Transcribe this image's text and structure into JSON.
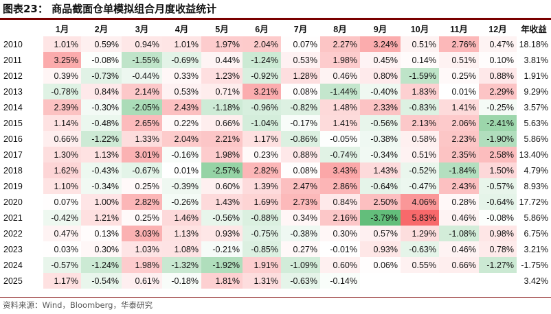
{
  "title": "图表23：  商品截面仓单模拟组合月度收益统计",
  "columns": [
    "1月",
    "2月",
    "3月",
    "4月",
    "5月",
    "6月",
    "7月",
    "8月",
    "9月",
    "10月",
    "11月",
    "12月",
    "年收益"
  ],
  "rows": [
    {
      "year": "2010",
      "vals": [
        "1.01%",
        "0.59%",
        "0.94%",
        "1.01%",
        "1.97%",
        "2.04%",
        "0.07%",
        "2.27%",
        "3.24%",
        "0.51%",
        "2.76%",
        "0.47%"
      ],
      "annual": "18.18%"
    },
    {
      "year": "2011",
      "vals": [
        "3.25%",
        "-0.08%",
        "-1.55%",
        "-0.69%",
        "0.44%",
        "-1.24%",
        "0.53%",
        "1.98%",
        "0.45%",
        "0.14%",
        "0.51%",
        "0.10%"
      ],
      "annual": "3.81%"
    },
    {
      "year": "2012",
      "vals": [
        "0.39%",
        "-0.73%",
        "-0.44%",
        "0.33%",
        "1.23%",
        "-0.92%",
        "1.28%",
        "0.46%",
        "0.80%",
        "-1.59%",
        "0.25%",
        "0.88%"
      ],
      "annual": "1.91%"
    },
    {
      "year": "2013",
      "vals": [
        "-0.78%",
        "0.84%",
        "2.14%",
        "0.53%",
        "0.71%",
        "3.21%",
        "0.08%",
        "-1.44%",
        "-0.40%",
        "1.83%",
        "0.01%",
        "2.29%"
      ],
      "annual": "9.29%"
    },
    {
      "year": "2014",
      "vals": [
        "2.39%",
        "-0.30%",
        "-2.05%",
        "2.43%",
        "-1.18%",
        "-0.96%",
        "-0.82%",
        "1.48%",
        "2.33%",
        "-0.83%",
        "1.41%",
        "-0.25%"
      ],
      "annual": "3.57%"
    },
    {
      "year": "2015",
      "vals": [
        "1.14%",
        "-0.48%",
        "2.65%",
        "0.22%",
        "0.66%",
        "-1.04%",
        "-0.17%",
        "1.41%",
        "-0.56%",
        "2.13%",
        "2.06%",
        "-2.41%"
      ],
      "annual": "5.63%"
    },
    {
      "year": "2016",
      "vals": [
        "0.66%",
        "-1.22%",
        "1.33%",
        "2.04%",
        "2.21%",
        "1.17%",
        "-0.86%",
        "-0.05%",
        "-0.38%",
        "0.58%",
        "2.23%",
        "-1.90%"
      ],
      "annual": "5.86%"
    },
    {
      "year": "2017",
      "vals": [
        "1.30%",
        "1.13%",
        "3.01%",
        "-0.16%",
        "1.98%",
        "0.23%",
        "0.88%",
        "-0.74%",
        "-0.34%",
        "0.51%",
        "2.35%",
        "2.58%"
      ],
      "annual": "13.40%"
    },
    {
      "year": "2018",
      "vals": [
        "1.62%",
        "-0.43%",
        "-0.67%",
        "0.01%",
        "-2.57%",
        "2.82%",
        "0.08%",
        "3.43%",
        "1.43%",
        "-0.52%",
        "-1.84%",
        "1.50%"
      ],
      "annual": "4.79%"
    },
    {
      "year": "2019",
      "vals": [
        "1.10%",
        "-0.34%",
        "0.25%",
        "-0.39%",
        "0.60%",
        "1.39%",
        "2.47%",
        "2.86%",
        "-0.64%",
        "-0.47%",
        "2.43%",
        "-0.57%"
      ],
      "annual": "8.93%"
    },
    {
      "year": "2020",
      "vals": [
        "0.07%",
        "1.00%",
        "2.82%",
        "-0.26%",
        "1.43%",
        "1.69%",
        "2.73%",
        "0.84%",
        "2.50%",
        "4.06%",
        "0.28%",
        "-0.64%"
      ],
      "annual": "17.72%"
    },
    {
      "year": "2021",
      "vals": [
        "-0.42%",
        "1.21%",
        "0.25%",
        "1.46%",
        "-0.56%",
        "-0.88%",
        "0.34%",
        "2.16%",
        "-3.79%",
        "5.83%",
        "0.46%",
        "-0.08%"
      ],
      "annual": "5.86%"
    },
    {
      "year": "2022",
      "vals": [
        "0.47%",
        "0.13%",
        "3.03%",
        "1.13%",
        "0.93%",
        "-0.75%",
        "-0.38%",
        "0.30%",
        "0.57%",
        "1.29%",
        "-1.08%",
        "0.98%"
      ],
      "annual": "6.75%"
    },
    {
      "year": "2023",
      "vals": [
        "0.03%",
        "0.30%",
        "1.03%",
        "1.08%",
        "-0.21%",
        "-0.85%",
        "0.27%",
        "-0.01%",
        "0.93%",
        "-0.63%",
        "0.46%",
        "0.78%"
      ],
      "annual": "3.21%"
    },
    {
      "year": "2024",
      "vals": [
        "-0.57%",
        "-1.24%",
        "1.98%",
        "-1.32%",
        "-1.92%",
        "1.91%",
        "-1.09%",
        "0.60%",
        "0.06%",
        "0.55%",
        "0.66%",
        "-1.27%"
      ],
      "annual": "-1.75%"
    },
    {
      "year": "2025",
      "vals": [
        "1.17%",
        "-0.54%",
        "0.61%",
        "-0.18%",
        "1.81%",
        "1.31%",
        "-0.63%",
        "-0.14%",
        "",
        "",
        "",
        ""
      ],
      "annual": "3.42%"
    }
  ],
  "source": "资料来源：Wind，Bloomberg，华泰研究",
  "colors": {
    "positive": "#f8696b",
    "negative": "#63be7b",
    "neutral": "#ffffff",
    "rule": "#7a0000"
  }
}
